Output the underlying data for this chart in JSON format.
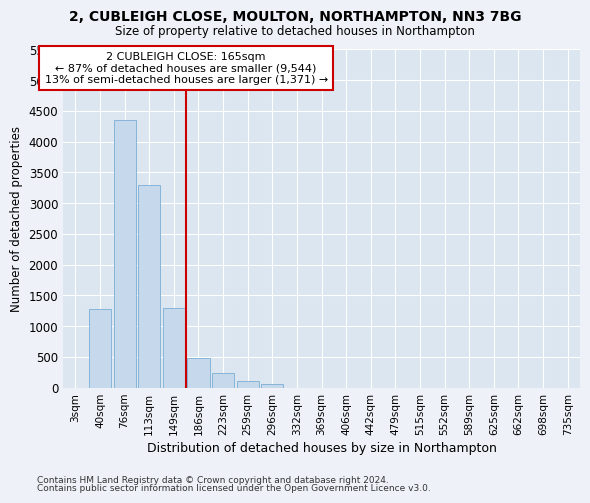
{
  "title": "2, CUBLEIGH CLOSE, MOULTON, NORTHAMPTON, NN3 7BG",
  "subtitle": "Size of property relative to detached houses in Northampton",
  "xlabel": "Distribution of detached houses by size in Northampton",
  "ylabel": "Number of detached properties",
  "categories": [
    "3sqm",
    "40sqm",
    "76sqm",
    "113sqm",
    "149sqm",
    "186sqm",
    "223sqm",
    "259sqm",
    "296sqm",
    "332sqm",
    "369sqm",
    "406sqm",
    "442sqm",
    "479sqm",
    "515sqm",
    "552sqm",
    "589sqm",
    "625sqm",
    "662sqm",
    "698sqm",
    "735sqm"
  ],
  "values": [
    0,
    1280,
    4350,
    3300,
    1300,
    480,
    235,
    100,
    60,
    0,
    0,
    0,
    0,
    0,
    0,
    0,
    0,
    0,
    0,
    0,
    0
  ],
  "bar_color": "#c6d9ec",
  "bar_edge_color": "#7aafd4",
  "vertical_line_color": "#cc0000",
  "annotation_text": "2 CUBLEIGH CLOSE: 165sqm\n← 87% of detached houses are smaller (9,544)\n13% of semi-detached houses are larger (1,371) →",
  "annotation_box_facecolor": "#ffffff",
  "annotation_box_edgecolor": "#cc0000",
  "ylim": [
    0,
    5500
  ],
  "yticks": [
    0,
    500,
    1000,
    1500,
    2000,
    2500,
    3000,
    3500,
    4000,
    4500,
    5000,
    5500
  ],
  "footnote1": "Contains HM Land Registry data © Crown copyright and database right 2024.",
  "footnote2": "Contains public sector information licensed under the Open Government Licence v3.0.",
  "bg_color": "#eef2f8",
  "plot_bg_color": "#dce6f0"
}
